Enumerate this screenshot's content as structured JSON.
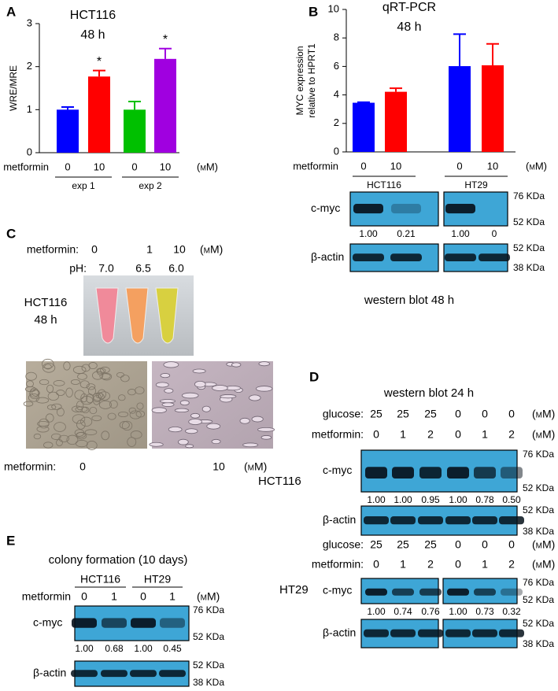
{
  "panel_labels": [
    "A",
    "B",
    "C",
    "D",
    "E"
  ],
  "chart_data": [
    {
      "type": "bar",
      "title": "HCT116",
      "subtitle": "48 h",
      "y_label": [
        "WRE/MRE"
      ],
      "x_row_label": "metformin",
      "unit": "(mM)",
      "categories": [
        "0",
        "10",
        "0",
        "10"
      ],
      "values": [
        1.0,
        1.77,
        1.0,
        2.18
      ],
      "errors": [
        0.06,
        0.14,
        0.19,
        0.24
      ],
      "colors": [
        "#0000ff",
        "#ff0000",
        "#00c000",
        "#a000e0"
      ],
      "annotations": [
        {
          "index": 1,
          "text": "*"
        },
        {
          "index": 3,
          "text": "*"
        }
      ],
      "groups": [
        "exp 1",
        "exp 2"
      ],
      "ylim": [
        0,
        3
      ],
      "yticks": [
        0,
        1,
        2,
        3
      ]
    },
    {
      "type": "bar",
      "title": "qRT-PCR",
      "subtitle": "48 h",
      "y_label": [
        "MYC expression",
        "relative to HPRT1"
      ],
      "x_row_label": "metformin",
      "unit": "(mM)",
      "categories": [
        "0",
        "10",
        "0",
        "10"
      ],
      "values": [
        3.45,
        4.22,
        6.02,
        6.08
      ],
      "errors": [
        0.04,
        0.25,
        2.25,
        1.5
      ],
      "colors": [
        "#0000ff",
        "#ff0000",
        "#0000ff",
        "#ff0000"
      ],
      "groups": [
        "HCT116",
        "HT29"
      ],
      "ylim": [
        0,
        10
      ],
      "yticks": [
        0,
        2,
        4,
        6,
        8,
        10
      ]
    }
  ],
  "blot_b": {
    "rows": [
      {
        "label": "c-myc",
        "markers": [
          "76 KDa",
          "52 KDa"
        ],
        "quant": [
          "1.00",
          "0.21",
          "1.00",
          "0"
        ]
      },
      {
        "label": "β-actin",
        "markers": [
          "52 KDa",
          "38 KDa"
        ]
      }
    ],
    "caption": "western blot 48 h"
  },
  "panel_c": {
    "row_label": "metformin:",
    "doses": [
      "0",
      "1",
      "10"
    ],
    "unit": "(mM)",
    "ph_label": "pH:",
    "ph": [
      "7.0",
      "6.5",
      "6.0"
    ],
    "cell_line": "HCT116",
    "time": "48 h",
    "bottom_label": "metformin:",
    "bottom_doses": [
      "0",
      "10"
    ],
    "bottom_unit": "(mM)"
  },
  "panel_d": {
    "title": "western blot 24 h",
    "sections": [
      {
        "cell_line": "HCT116",
        "glucose_label": "glucose:",
        "glucose": [
          "25",
          "25",
          "25",
          "0",
          "0",
          "0"
        ],
        "glucose_unit": "(mM)",
        "metformin_label": "metformin:",
        "metformin": [
          "0",
          "1",
          "2",
          "0",
          "1",
          "2"
        ],
        "metformin_unit": "(mM)",
        "rows": [
          {
            "label": "c-myc",
            "markers": [
              "76 KDa",
              "52 KDa"
            ],
            "quant": [
              "1.00",
              "1.00",
              "0.95",
              "1.00",
              "0.78",
              "0.50"
            ]
          },
          {
            "label": "β-actin",
            "markers": [
              "52 KDa",
              "38 KDa"
            ]
          }
        ]
      },
      {
        "cell_line": "HT29",
        "glucose_label": "glucose:",
        "glucose": [
          "25",
          "25",
          "25",
          "0",
          "0",
          "0"
        ],
        "glucose_unit": "(mM)",
        "metformin_label": "metformin:",
        "metformin": [
          "0",
          "1",
          "2",
          "0",
          "1",
          "2"
        ],
        "metformin_unit": "(mM)",
        "rows": [
          {
            "label": "c-myc",
            "markers": [
              "76 KDa",
              "52 KDa"
            ],
            "quant": [
              "1.00",
              "0.74",
              "0.76",
              "1.00",
              "0.73",
              "0.32"
            ]
          },
          {
            "label": "β-actin",
            "markers": [
              "52 KDa",
              "38 KDa"
            ]
          }
        ]
      }
    ]
  },
  "panel_e": {
    "title": "colony formation (10 days)",
    "groups": [
      "HCT116",
      "HT29"
    ],
    "metformin_label": "metformin",
    "metformin": [
      "0",
      "1",
      "0",
      "1"
    ],
    "unit": "(mM)",
    "rows": [
      {
        "label": "c-myc",
        "markers": [
          "76 KDa",
          "52 KDa"
        ],
        "quant": [
          "1.00",
          "0.68",
          "1.00",
          "0.45"
        ]
      },
      {
        "label": "β-actin",
        "markers": [
          "52 KDa",
          "38 KDa"
        ]
      }
    ]
  }
}
